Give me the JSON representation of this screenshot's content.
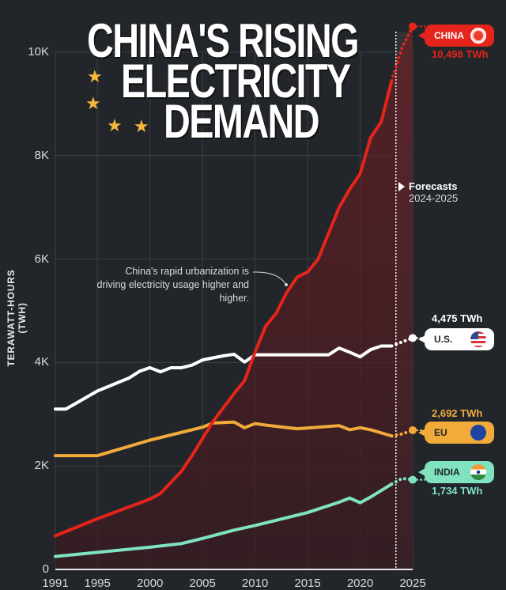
{
  "title": {
    "line1": "CHINA'S RISING",
    "line2": "ELECTRICITY",
    "line3": "DEMAND"
  },
  "annotation": "China's rapid urbanization is driving electricity usage higher and higher.",
  "forecast": {
    "label": "Forecasts",
    "years": "2024-2025"
  },
  "icons": {
    "stars": "china-flag-star-icon",
    "flag_china": "china-flag-icon",
    "flag_us": "us-flag-icon",
    "flag_eu": "eu-flag-icon",
    "flag_india": "india-flag-icon"
  },
  "colors": {
    "background": "#22262b",
    "china": "#e5241b",
    "us": "#ffffff",
    "eu": "#f2aa3b",
    "india": "#7fe3c0",
    "grid": "#3b3f45"
  },
  "labels": {
    "china": {
      "name": "CHINA",
      "value": "10,498 TWh"
    },
    "us": {
      "name": "U.S.",
      "value": "4,475 TWh"
    },
    "eu": {
      "name": "EU",
      "value": "2,692 TWh"
    },
    "india": {
      "name": "INDIA",
      "value": "1,734 TWh"
    }
  },
  "chart_data": {
    "type": "line",
    "title": "China's Rising Electricity Demand",
    "xlabel": "",
    "ylabel": "TERAWATT-HOURS (TWH)",
    "xlim": [
      1991,
      2025
    ],
    "ylim": [
      0,
      10000
    ],
    "x_ticks": [
      "1991",
      "1995",
      "2000",
      "2005",
      "2010",
      "2015",
      "2020",
      "2025"
    ],
    "y_ticks": [
      {
        "v": 0,
        "label": "0"
      },
      {
        "v": 2000,
        "label": "2K"
      },
      {
        "v": 4000,
        "label": "4K"
      },
      {
        "v": 6000,
        "label": "6K"
      },
      {
        "v": 8000,
        "label": "8K"
      },
      {
        "v": 10000,
        "label": "10K"
      }
    ],
    "grid": true,
    "forecast_start": 2023.4,
    "series": [
      {
        "name": "China",
        "key": "china",
        "x": [
          1991,
          1995,
          2000,
          2001,
          2003,
          2004,
          2006,
          2008,
          2009,
          2010,
          2011,
          2012,
          2013,
          2014,
          2015,
          2016,
          2017,
          2018,
          2019,
          2020,
          2021,
          2022,
          2023
        ],
        "values": [
          650,
          980,
          1360,
          1470,
          1900,
          2200,
          2860,
          3400,
          3650,
          4200,
          4700,
          4950,
          5350,
          5650,
          5750,
          6000,
          6500,
          7000,
          7350,
          7650,
          8350,
          8650,
          9450
        ],
        "forecast_x": [
          2023,
          2024,
          2025
        ],
        "forecast_values": [
          9450,
          10100,
          10498
        ]
      },
      {
        "name": "U.S.",
        "key": "us",
        "x": [
          1991,
          1992,
          1995,
          1998,
          1999,
          2000,
          2001,
          2002,
          2003,
          2004,
          2005,
          2007,
          2008,
          2009,
          2010,
          2017,
          2018,
          2019,
          2020,
          2021,
          2022,
          2023
        ],
        "values": [
          3100,
          3100,
          3450,
          3700,
          3830,
          3900,
          3820,
          3900,
          3900,
          3950,
          4050,
          4130,
          4160,
          4010,
          4150,
          4150,
          4280,
          4200,
          4110,
          4250,
          4320,
          4320
        ],
        "forecast_x": [
          2023,
          2024,
          2025
        ],
        "forecast_values": [
          4320,
          4400,
          4475
        ]
      },
      {
        "name": "EU",
        "key": "eu",
        "x": [
          1991,
          1995,
          2000,
          2005,
          2006,
          2008,
          2009,
          2010,
          2011,
          2014,
          2018,
          2019,
          2020,
          2021,
          2023
        ],
        "values": [
          2200,
          2200,
          2500,
          2750,
          2830,
          2850,
          2740,
          2820,
          2790,
          2720,
          2780,
          2700,
          2740,
          2700,
          2580
        ],
        "forecast_x": [
          2023,
          2024,
          2025
        ],
        "forecast_values": [
          2580,
          2620,
          2692
        ]
      },
      {
        "name": "India",
        "key": "india",
        "x": [
          1991,
          1995,
          2000,
          2003,
          2005,
          2008,
          2010,
          2015,
          2018,
          2019,
          2020,
          2021,
          2023
        ],
        "values": [
          250,
          330,
          430,
          500,
          600,
          760,
          850,
          1100,
          1300,
          1380,
          1290,
          1400,
          1650
        ],
        "forecast_x": [
          2023,
          2024,
          2025
        ],
        "forecast_values": [
          1650,
          1760,
          1734
        ]
      }
    ]
  }
}
